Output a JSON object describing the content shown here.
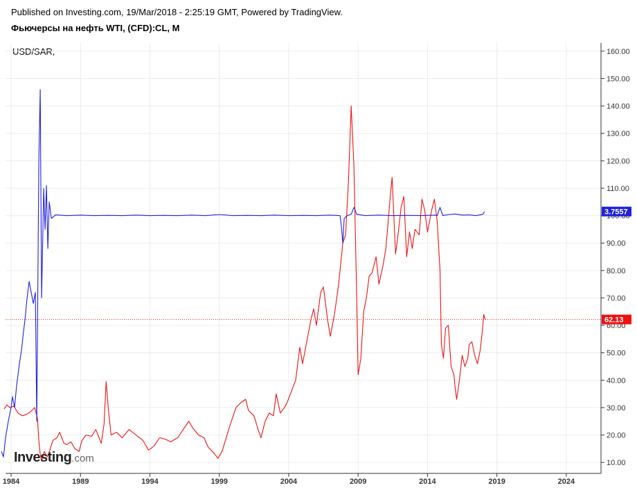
{
  "header": {
    "published": "Published on Investing.com, 19/Mar/2018 - 2:25:19 GMT, Powered by TradingView.",
    "title": "Фьючерсы на нефть WTI, (CFD):CL, M"
  },
  "series_label": "USD/SAR,",
  "logo": {
    "main": "Investing",
    "suffix": ".com"
  },
  "colors": {
    "wti": "#ee1111",
    "usdsar": "#1f1fdd",
    "grid": "#ececec"
  },
  "chart_data": {
    "type": "line",
    "x_unit": "year",
    "xlim": [
      1983.6,
      2026.5
    ],
    "ylim": [
      6,
      163
    ],
    "x_ticks": [
      {
        "value": 1984,
        "label": "1984"
      },
      {
        "value": 1989,
        "label": "1989"
      },
      {
        "value": 1994,
        "label": "1994"
      },
      {
        "value": 1999,
        "label": "1999"
      },
      {
        "value": 2004,
        "label": "2004"
      },
      {
        "value": 2009,
        "label": "2009"
      },
      {
        "value": 2014,
        "label": "2014"
      },
      {
        "value": 2019,
        "label": "2019"
      },
      {
        "value": 2024,
        "label": "2024"
      }
    ],
    "y_ticks": [
      {
        "value": 10,
        "label": "10.00"
      },
      {
        "value": 20,
        "label": "20.00"
      },
      {
        "value": 30,
        "label": "30.00"
      },
      {
        "value": 40,
        "label": "40.00"
      },
      {
        "value": 50,
        "label": "50.00"
      },
      {
        "value": 60,
        "label": "60.00"
      },
      {
        "value": 70,
        "label": "70.00"
      },
      {
        "value": 80,
        "label": "80.00"
      },
      {
        "value": 90,
        "label": "90.00"
      },
      {
        "value": 100,
        "label": "100.00"
      },
      {
        "value": 110,
        "label": "110.00"
      },
      {
        "value": 120,
        "label": "120.00"
      },
      {
        "value": 130,
        "label": "130.00"
      },
      {
        "value": 140,
        "label": "140.00"
      },
      {
        "value": 150,
        "label": "150.00"
      },
      {
        "value": 160,
        "label": "160.00"
      }
    ],
    "grid": true,
    "last_price_line": 62.13,
    "series": [
      {
        "key": "wti",
        "color": "#ee1111",
        "last_label": "62.13",
        "points": [
          [
            1983.5,
            29.5
          ],
          [
            1983.7,
            31
          ],
          [
            1983.9,
            30
          ],
          [
            1984.2,
            30.5
          ],
          [
            1984.5,
            28
          ],
          [
            1984.8,
            27
          ],
          [
            1985.1,
            27.5
          ],
          [
            1985.4,
            28.5
          ],
          [
            1985.7,
            30
          ],
          [
            1985.9,
            26
          ],
          [
            1986.0,
            18
          ],
          [
            1986.1,
            13
          ],
          [
            1986.2,
            10.5
          ],
          [
            1986.4,
            14
          ],
          [
            1986.6,
            12
          ],
          [
            1986.8,
            14.5
          ],
          [
            1987.0,
            18
          ],
          [
            1987.3,
            19
          ],
          [
            1987.5,
            21
          ],
          [
            1987.8,
            17
          ],
          [
            1988.0,
            16.5
          ],
          [
            1988.3,
            17.5
          ],
          [
            1988.6,
            15
          ],
          [
            1988.9,
            14
          ],
          [
            1989.1,
            18
          ],
          [
            1989.4,
            20
          ],
          [
            1989.8,
            19.5
          ],
          [
            1990.1,
            22
          ],
          [
            1990.5,
            17
          ],
          [
            1990.7,
            24
          ],
          [
            1990.85,
            39.5
          ],
          [
            1991.0,
            30
          ],
          [
            1991.2,
            20
          ],
          [
            1991.6,
            21
          ],
          [
            1992.0,
            19
          ],
          [
            1992.5,
            22
          ],
          [
            1993.0,
            20
          ],
          [
            1993.5,
            18
          ],
          [
            1993.9,
            14.5
          ],
          [
            1994.3,
            16
          ],
          [
            1994.7,
            19
          ],
          [
            1995.1,
            18.5
          ],
          [
            1995.5,
            17.5
          ],
          [
            1996.0,
            19
          ],
          [
            1996.4,
            22
          ],
          [
            1996.8,
            25
          ],
          [
            1997.1,
            22.5
          ],
          [
            1997.5,
            20
          ],
          [
            1997.9,
            19
          ],
          [
            1998.2,
            15.5
          ],
          [
            1998.6,
            13.5
          ],
          [
            1998.9,
            11.5
          ],
          [
            1999.2,
            14
          ],
          [
            1999.5,
            19
          ],
          [
            1999.8,
            24
          ],
          [
            2000.2,
            30
          ],
          [
            2000.6,
            32
          ],
          [
            2000.9,
            33
          ],
          [
            2001.1,
            29
          ],
          [
            2001.5,
            27
          ],
          [
            2001.8,
            22
          ],
          [
            2002.0,
            19
          ],
          [
            2002.3,
            25
          ],
          [
            2002.6,
            28
          ],
          [
            2002.9,
            27
          ],
          [
            2003.1,
            35
          ],
          [
            2003.4,
            28
          ],
          [
            2003.7,
            30
          ],
          [
            2003.9,
            32
          ],
          [
            2004.2,
            36
          ],
          [
            2004.5,
            40
          ],
          [
            2004.8,
            52
          ],
          [
            2005.0,
            46
          ],
          [
            2005.3,
            54
          ],
          [
            2005.6,
            62
          ],
          [
            2005.8,
            66
          ],
          [
            2006.0,
            60
          ],
          [
            2006.3,
            72
          ],
          [
            2006.5,
            74
          ],
          [
            2006.8,
            62
          ],
          [
            2007.0,
            56
          ],
          [
            2007.3,
            64
          ],
          [
            2007.6,
            75
          ],
          [
            2007.9,
            90
          ],
          [
            2008.1,
            93
          ],
          [
            2008.3,
            112
          ],
          [
            2008.5,
            140
          ],
          [
            2008.7,
            118
          ],
          [
            2008.9,
            70
          ],
          [
            2009.0,
            42
          ],
          [
            2009.2,
            48
          ],
          [
            2009.4,
            65
          ],
          [
            2009.6,
            70
          ],
          [
            2009.8,
            78
          ],
          [
            2010.0,
            79
          ],
          [
            2010.3,
            85
          ],
          [
            2010.5,
            75
          ],
          [
            2010.8,
            82
          ],
          [
            2011.0,
            88
          ],
          [
            2011.3,
            106
          ],
          [
            2011.45,
            114
          ],
          [
            2011.7,
            86
          ],
          [
            2011.9,
            94
          ],
          [
            2012.1,
            103
          ],
          [
            2012.3,
            107
          ],
          [
            2012.5,
            85
          ],
          [
            2012.7,
            94
          ],
          [
            2012.9,
            88
          ],
          [
            2013.1,
            95
          ],
          [
            2013.4,
            93
          ],
          [
            2013.6,
            106
          ],
          [
            2013.8,
            102
          ],
          [
            2014.0,
            94
          ],
          [
            2014.3,
            102
          ],
          [
            2014.5,
            106
          ],
          [
            2014.7,
            98
          ],
          [
            2014.9,
            80
          ],
          [
            2015.0,
            53
          ],
          [
            2015.15,
            48
          ],
          [
            2015.3,
            59
          ],
          [
            2015.5,
            60
          ],
          [
            2015.7,
            45
          ],
          [
            2015.9,
            42
          ],
          [
            2016.0,
            37
          ],
          [
            2016.1,
            33
          ],
          [
            2016.3,
            40
          ],
          [
            2016.5,
            49
          ],
          [
            2016.7,
            45
          ],
          [
            2016.9,
            48
          ],
          [
            2017.0,
            53
          ],
          [
            2017.2,
            54
          ],
          [
            2017.4,
            49
          ],
          [
            2017.6,
            46
          ],
          [
            2017.8,
            51
          ],
          [
            2017.95,
            58
          ],
          [
            2018.05,
            64
          ],
          [
            2018.15,
            62.13
          ]
        ]
      },
      {
        "key": "usdsar",
        "color": "#1f1fdd",
        "last_label": "3.7557",
        "points": [
          [
            1983.3,
            14
          ],
          [
            1983.45,
            12
          ],
          [
            1983.6,
            19
          ],
          [
            1983.8,
            25
          ],
          [
            1984.0,
            30
          ],
          [
            1984.1,
            34
          ],
          [
            1984.25,
            30
          ],
          [
            1984.4,
            38
          ],
          [
            1984.6,
            46
          ],
          [
            1984.75,
            51
          ],
          [
            1984.9,
            58
          ],
          [
            1985.0,
            62
          ],
          [
            1985.15,
            70
          ],
          [
            1985.3,
            76
          ],
          [
            1985.45,
            72
          ],
          [
            1985.6,
            68
          ],
          [
            1985.75,
            72
          ],
          [
            1985.85,
            25
          ],
          [
            1986.0,
            120
          ],
          [
            1986.1,
            146
          ],
          [
            1986.2,
            70
          ],
          [
            1986.35,
            110
          ],
          [
            1986.45,
            95
          ],
          [
            1986.55,
            111
          ],
          [
            1986.65,
            88
          ],
          [
            1986.75,
            105
          ],
          [
            1986.9,
            99
          ],
          [
            1987.2,
            100.3
          ],
          [
            1988.0,
            100
          ],
          [
            1989.0,
            100.2
          ],
          [
            1990.0,
            100
          ],
          [
            1991.0,
            100.1
          ],
          [
            1992.0,
            100
          ],
          [
            1993.0,
            100.2
          ],
          [
            1994.0,
            100
          ],
          [
            1995.0,
            100.1
          ],
          [
            1996.0,
            100
          ],
          [
            1997.0,
            100.2
          ],
          [
            1998.0,
            100
          ],
          [
            1999.0,
            100.4
          ],
          [
            2000.0,
            100
          ],
          [
            2001.0,
            100.1
          ],
          [
            2002.0,
            100
          ],
          [
            2003.0,
            100.2
          ],
          [
            2004.0,
            100
          ],
          [
            2005.0,
            100.1
          ],
          [
            2006.0,
            100
          ],
          [
            2007.0,
            100.2
          ],
          [
            2007.7,
            100
          ],
          [
            2007.8,
            96
          ],
          [
            2007.9,
            90
          ],
          [
            2008.0,
            99
          ],
          [
            2008.2,
            100
          ],
          [
            2008.5,
            100.5
          ],
          [
            2008.7,
            103
          ],
          [
            2008.9,
            100.5
          ],
          [
            2009.5,
            100
          ],
          [
            2010.5,
            100.2
          ],
          [
            2011.5,
            100
          ],
          [
            2012.5,
            100.1
          ],
          [
            2013.5,
            100
          ],
          [
            2014.5,
            100.2
          ],
          [
            2014.7,
            100
          ],
          [
            2014.9,
            103
          ],
          [
            2015.1,
            100
          ],
          [
            2015.5,
            100.4
          ],
          [
            2016.0,
            100.6
          ],
          [
            2016.5,
            100.2
          ],
          [
            2017.0,
            100.3
          ],
          [
            2017.5,
            100
          ],
          [
            2018.0,
            100.5
          ],
          [
            2018.1,
            101.5
          ]
        ]
      }
    ]
  }
}
